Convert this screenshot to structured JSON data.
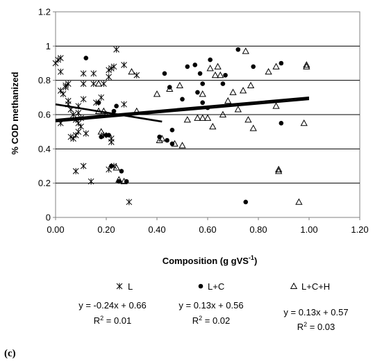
{
  "chart_data": {
    "type": "scatter",
    "ylabel": "% COD methanized",
    "xlabel": "Composition (g gVS",
    "xlabel_sup": "-1",
    "xlabel_close": ")",
    "xlim": [
      0,
      1.2
    ],
    "ylim": [
      0,
      1.2
    ],
    "x_ticks": [
      "0.00",
      "0.20",
      "0.40",
      "0.60",
      "0.80",
      "1.00",
      "1.20"
    ],
    "y_ticks": [
      "0",
      "0.2",
      "0.4",
      "0.6",
      "0.8",
      "1",
      "1.2"
    ],
    "grid": "horizontal",
    "legend_position": "bottom",
    "panel_label": "(c)",
    "series": [
      {
        "name": "L",
        "marker": "asterisk",
        "points": [
          [
            0.0,
            0.9
          ],
          [
            0.01,
            0.92
          ],
          [
            0.02,
            0.93
          ],
          [
            0.02,
            0.85
          ],
          [
            0.02,
            0.74
          ],
          [
            0.02,
            0.55
          ],
          [
            0.03,
            0.72
          ],
          [
            0.04,
            0.76
          ],
          [
            0.04,
            0.77
          ],
          [
            0.05,
            0.78
          ],
          [
            0.05,
            0.66
          ],
          [
            0.05,
            0.68
          ],
          [
            0.06,
            0.63
          ],
          [
            0.06,
            0.47
          ],
          [
            0.07,
            0.46
          ],
          [
            0.07,
            0.6
          ],
          [
            0.08,
            0.57
          ],
          [
            0.08,
            0.48
          ],
          [
            0.08,
            0.27
          ],
          [
            0.09,
            0.65
          ],
          [
            0.09,
            0.61
          ],
          [
            0.09,
            0.55
          ],
          [
            0.09,
            0.5
          ],
          [
            0.1,
            0.58
          ],
          [
            0.1,
            0.53
          ],
          [
            0.11,
            0.84
          ],
          [
            0.11,
            0.78
          ],
          [
            0.11,
            0.69
          ],
          [
            0.11,
            0.3
          ],
          [
            0.12,
            0.49
          ],
          [
            0.14,
            0.21
          ],
          [
            0.15,
            0.84
          ],
          [
            0.15,
            0.78
          ],
          [
            0.16,
            0.67
          ],
          [
            0.18,
            0.7
          ],
          [
            0.19,
            0.78
          ],
          [
            0.19,
            0.48
          ],
          [
            0.21,
            0.86
          ],
          [
            0.21,
            0.82
          ],
          [
            0.21,
            0.28
          ],
          [
            0.22,
            0.87
          ],
          [
            0.22,
            0.46
          ],
          [
            0.22,
            0.44
          ],
          [
            0.23,
            0.88
          ],
          [
            0.23,
            0.3
          ],
          [
            0.24,
            0.98
          ],
          [
            0.27,
            0.66
          ],
          [
            0.27,
            0.89
          ],
          [
            0.29,
            0.09
          ],
          [
            0.32,
            0.83
          ]
        ]
      },
      {
        "name": "L+C",
        "marker": "filled-circle",
        "points": [
          [
            0.12,
            0.93
          ],
          [
            0.17,
            0.67
          ],
          [
            0.18,
            0.47
          ],
          [
            0.2,
            0.48
          ],
          [
            0.21,
            0.48
          ],
          [
            0.22,
            0.3
          ],
          [
            0.23,
            0.62
          ],
          [
            0.24,
            0.65
          ],
          [
            0.25,
            0.21
          ],
          [
            0.26,
            0.27
          ],
          [
            0.28,
            0.21
          ],
          [
            0.41,
            0.47
          ],
          [
            0.43,
            0.84
          ],
          [
            0.44,
            0.45
          ],
          [
            0.45,
            0.76
          ],
          [
            0.46,
            0.43
          ],
          [
            0.46,
            0.51
          ],
          [
            0.5,
            0.69
          ],
          [
            0.52,
            0.88
          ],
          [
            0.55,
            0.89
          ],
          [
            0.56,
            0.73
          ],
          [
            0.57,
            0.84
          ],
          [
            0.58,
            0.78
          ],
          [
            0.58,
            0.67
          ],
          [
            0.6,
            0.64
          ],
          [
            0.61,
            0.92
          ],
          [
            0.66,
            0.78
          ],
          [
            0.67,
            0.83
          ],
          [
            0.72,
            0.98
          ],
          [
            0.75,
            0.09
          ],
          [
            0.78,
            0.88
          ],
          [
            0.89,
            0.9
          ],
          [
            0.89,
            0.55
          ]
        ]
      },
      {
        "name": "L+C+H",
        "marker": "open-triangle",
        "points": [
          [
            0.17,
            0.78
          ],
          [
            0.17,
            0.62
          ],
          [
            0.18,
            0.5
          ],
          [
            0.19,
            0.62
          ],
          [
            0.2,
            0.6
          ],
          [
            0.24,
            0.29
          ],
          [
            0.25,
            0.22
          ],
          [
            0.27,
            0.21
          ],
          [
            0.3,
            0.85
          ],
          [
            0.32,
            0.62
          ],
          [
            0.4,
            0.72
          ],
          [
            0.41,
            0.45
          ],
          [
            0.42,
            0.46
          ],
          [
            0.45,
            0.75
          ],
          [
            0.47,
            0.43
          ],
          [
            0.49,
            0.77
          ],
          [
            0.5,
            0.42
          ],
          [
            0.52,
            0.57
          ],
          [
            0.56,
            0.58
          ],
          [
            0.58,
            0.58
          ],
          [
            0.58,
            0.72
          ],
          [
            0.6,
            0.58
          ],
          [
            0.61,
            0.87
          ],
          [
            0.62,
            0.53
          ],
          [
            0.63,
            0.83
          ],
          [
            0.64,
            0.88
          ],
          [
            0.65,
            0.83
          ],
          [
            0.66,
            0.6
          ],
          [
            0.68,
            0.68
          ],
          [
            0.7,
            0.73
          ],
          [
            0.72,
            0.63
          ],
          [
            0.74,
            0.74
          ],
          [
            0.75,
            0.97
          ],
          [
            0.76,
            0.57
          ],
          [
            0.77,
            0.77
          ],
          [
            0.78,
            0.52
          ],
          [
            0.84,
            0.85
          ],
          [
            0.87,
            0.65
          ],
          [
            0.87,
            0.88
          ],
          [
            0.88,
            0.28
          ],
          [
            0.88,
            0.27
          ],
          [
            0.96,
            0.09
          ],
          [
            0.98,
            0.55
          ],
          [
            0.99,
            0.89
          ],
          [
            0.99,
            0.88
          ]
        ]
      }
    ],
    "trendlines": [
      {
        "series": "L",
        "slope": -0.24,
        "intercept": 0.66,
        "x_range": [
          0.0,
          0.42
        ]
      },
      {
        "series": "L+C",
        "slope": 0.13,
        "intercept": 0.56,
        "x_range": [
          0.0,
          1.0
        ]
      },
      {
        "series": "L+C+H",
        "slope": 0.13,
        "intercept": 0.57,
        "x_range": [
          0.0,
          1.0
        ]
      }
    ],
    "legend": [
      {
        "label": "L",
        "marker": "asterisk"
      },
      {
        "label": "L+C",
        "marker": "filled-circle"
      },
      {
        "label": "L+C+H",
        "marker": "open-triangle"
      }
    ],
    "equations": [
      {
        "series": "L",
        "equation": "y = -0.24x + 0.66",
        "r2_prefix": "R",
        "r2_sup": "2",
        "r2_value": " = 0.01"
      },
      {
        "series": "L+C",
        "equation": "y = 0.13x + 0.56",
        "r2_prefix": "R",
        "r2_sup": "2",
        "r2_value": " = 0.02"
      },
      {
        "series": "L+C+H",
        "equation": "y = 0.13x + 0.57",
        "r2_prefix": "R",
        "r2_sup": "2",
        "r2_value": " = 0.03"
      }
    ]
  }
}
